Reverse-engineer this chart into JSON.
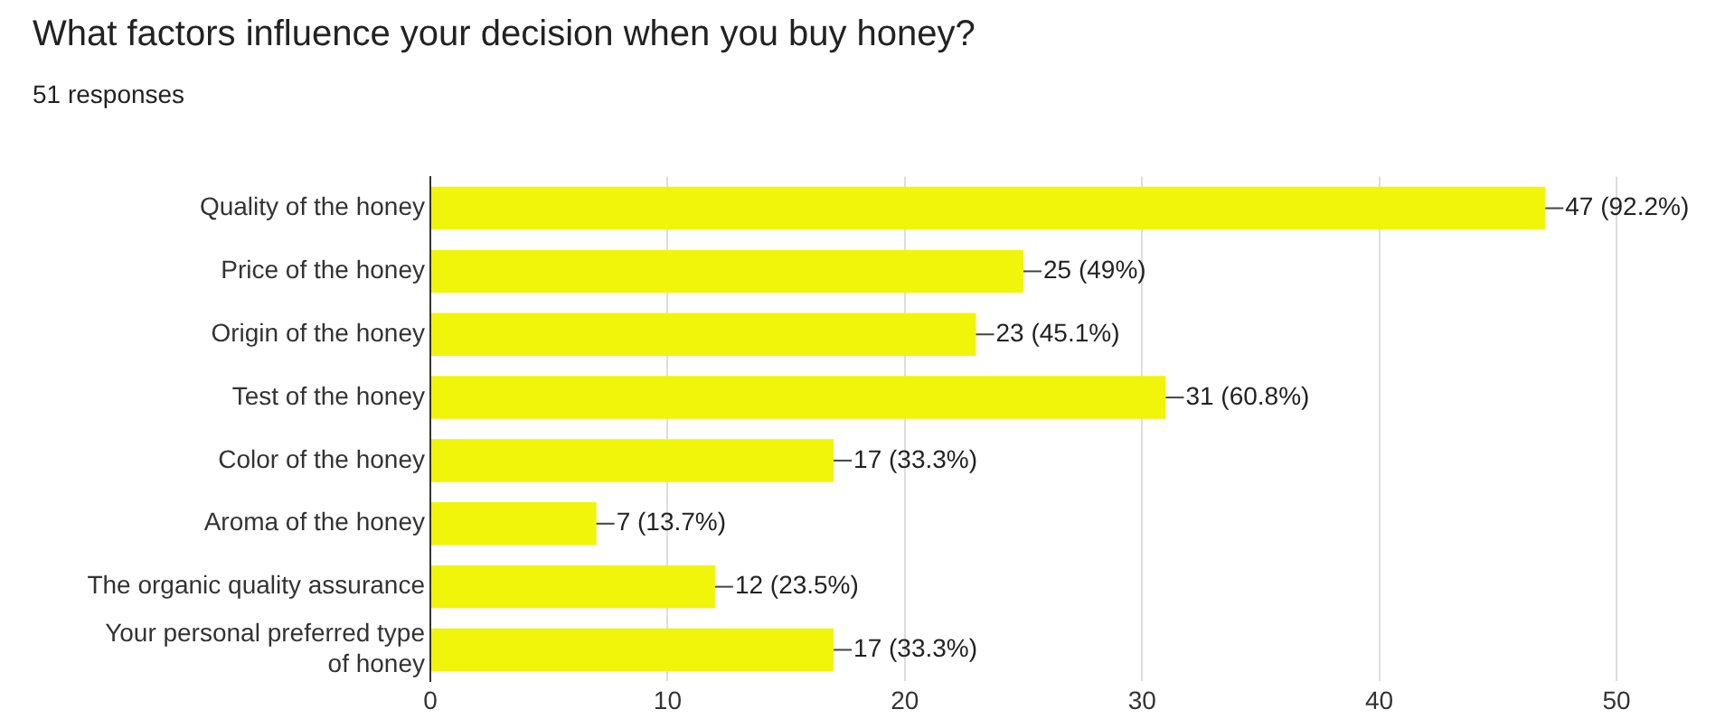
{
  "chart_data": {
    "type": "bar",
    "orientation": "horizontal",
    "title": "What factors influence your decision when you buy honey?",
    "subtitle": "51 responses",
    "categories": [
      "Quality of the honey",
      "Price of the honey",
      "Origin of the honey",
      "Test of the honey",
      "Color of the honey",
      "Aroma of the honey",
      "The organic quality assurance",
      "Your personal preferred type of honey"
    ],
    "values": [
      47,
      25,
      23,
      31,
      17,
      7,
      12,
      17
    ],
    "value_labels": [
      "47 (92.2%)",
      "25 (49%)",
      "23 (45.1%)",
      "31 (60.8%)",
      "17 (33.3%)",
      "7 (13.7%)",
      "12 (23.5%)",
      "17 (33.3%)"
    ],
    "color": "#f0f50a",
    "xlim": [
      0,
      50
    ],
    "xticks": [
      0,
      10,
      20,
      30,
      40,
      50
    ],
    "grid": "x",
    "legend": false
  }
}
